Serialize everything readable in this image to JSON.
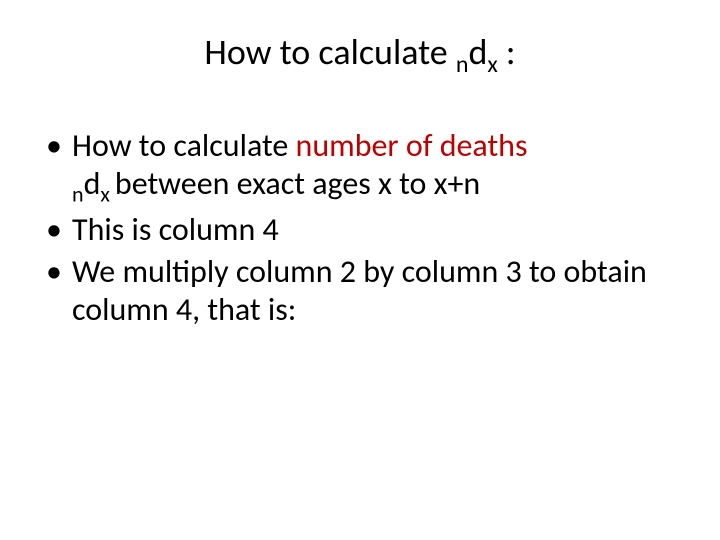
{
  "title": {
    "prefix": "How to calculate ",
    "n": "n",
    "d": "d",
    "x": "x",
    "suffix": " :"
  },
  "bullets": {
    "b1": {
      "line1_prefix": "How to calculate ",
      "line1_red": "number of deaths",
      "ndx_n": "n",
      "ndx_d": "d",
      "ndx_x": "x ",
      "line2_rest": "between exact ages x to x+n"
    },
    "b2": "This is column 4",
    "b3": "We multiply column 2 by column 3 to obtain column 4, that is:"
  },
  "colors": {
    "red": "#c00000",
    "text": "#000000",
    "background": "#ffffff"
  },
  "fontsize": {
    "title": 36,
    "body": 32
  }
}
